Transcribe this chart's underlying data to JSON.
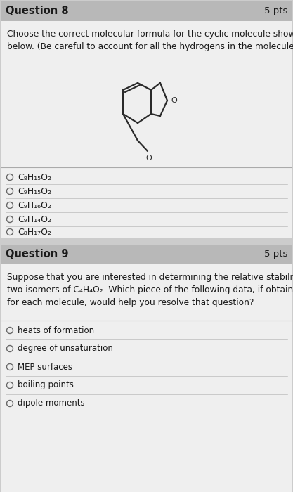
{
  "bg_color": "#cccccc",
  "header_bg": "#b8b8b8",
  "body_bg": "#efefef",
  "text_color": "#1a1a1a",
  "q8_title": "Question 8",
  "q8_pts": "5 pts",
  "q8_body": "Choose the correct molecular formula for the cyclic molecule shown\nbelow. (Be careful to account for all the hydrogens in the molecule.)",
  "q8_options": [
    "C₈H₁₅O₂",
    "C₉H₁₅O₂",
    "C₉H₁₆O₂",
    "C₉H₁₄O₂",
    "C₈H₁₇O₂"
  ],
  "q9_title": "Question 9",
  "q9_pts": "5 pts",
  "q9_body": "Suppose that you are interested in determining the relative stability of\ntwo isomers of C₄H₄O₂. Which piece of the following data, if obtained\nfor each molecule, would help you resolve that question?",
  "q9_options": [
    "heats of formation",
    "degree of unsaturation",
    "MEP surfaces",
    "boiling points",
    "dipole moments"
  ]
}
